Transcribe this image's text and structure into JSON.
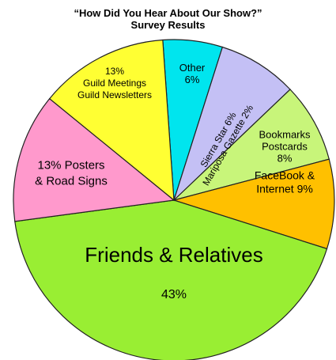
{
  "chart_data": {
    "type": "pie",
    "title": "“How Did You Hear About Our Show?”",
    "subtitle": "Survey Results",
    "slices": [
      {
        "label_lines": [
          "Other",
          "6%"
        ],
        "value": 6,
        "color": "#00e5ee"
      },
      {
        "label_lines": [
          "Sierra Star 6%",
          "Mariposa Gazette 2%"
        ],
        "value": 8,
        "color": "#c4c0f5"
      },
      {
        "label_lines": [
          "Bookmarks",
          "Postcards",
          "8%"
        ],
        "value": 8,
        "color": "#c8f57a"
      },
      {
        "label_lines": [
          "FaceBook &",
          "Internet 9%"
        ],
        "value": 9,
        "color": "#ffc000"
      },
      {
        "label_lines": [
          "Friends & Relatives",
          "43%"
        ],
        "value": 43,
        "color": "#99ee33"
      },
      {
        "label_lines": [
          "13%  Posters",
          "& Road Signs"
        ],
        "value": 13,
        "color": "#ff99cc"
      },
      {
        "label_lines": [
          "13%",
          "Guild Meetings",
          "Guild Newsletters"
        ],
        "value": 13,
        "color": "#ffff33"
      }
    ]
  }
}
